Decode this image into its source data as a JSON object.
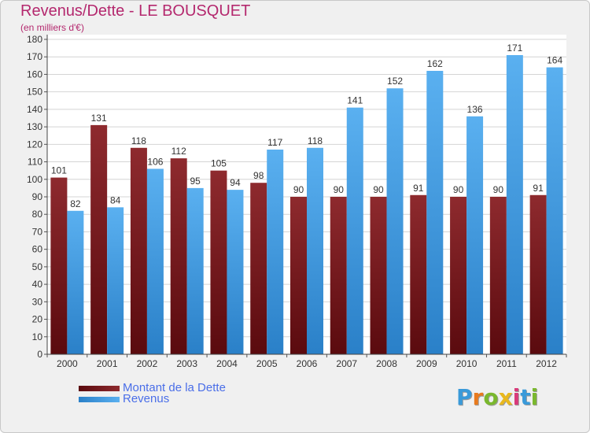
{
  "header": {
    "title": "Revenus/Dette - LE BOUSQUET",
    "subtitle": "(en milliers d'€)"
  },
  "logo": {
    "text": "Proxiti",
    "letters": [
      "P",
      "r",
      "o",
      "x",
      "i",
      "t",
      "i"
    ],
    "colors": [
      "#3a9ad9",
      "#e87a1e",
      "#7ab82e",
      "#e8b81e",
      "#d93a7a",
      "#3a9ad9",
      "#7ab82e"
    ]
  },
  "chart_data": {
    "type": "bar",
    "title": "Revenus/Dette - LE BOUSQUET",
    "subtitle": "(en milliers d'€)",
    "categories": [
      "2000",
      "2001",
      "2002",
      "2003",
      "2004",
      "2005",
      "2006",
      "2007",
      "2008",
      "2009",
      "2010",
      "2011",
      "2012"
    ],
    "series": [
      {
        "name": "Montant de la Dette",
        "color": "#7a1a1e",
        "values": [
          101,
          131,
          118,
          112,
          105,
          98,
          90,
          90,
          90,
          91,
          90,
          90,
          91
        ]
      },
      {
        "name": "Revenus",
        "color": "#3d9be0",
        "values": [
          82,
          84,
          106,
          95,
          94,
          117,
          118,
          141,
          152,
          162,
          136,
          171,
          164
        ]
      }
    ],
    "ylim": [
      0,
      180
    ],
    "ytick_step": 10,
    "grid": true,
    "legend_position": "bottom-left"
  }
}
